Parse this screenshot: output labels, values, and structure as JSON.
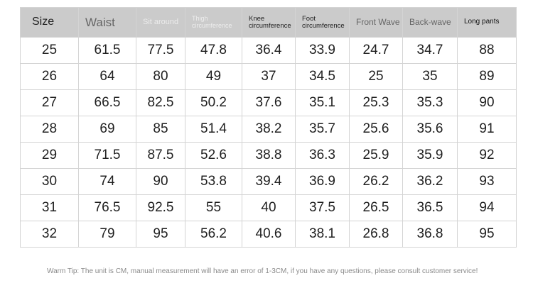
{
  "table": {
    "headers": [
      "Size",
      "Waist",
      "Sit around",
      "Thigh circumference",
      "Knee circumference",
      "Foot circumference",
      "Front Wave",
      "Back-wave",
      "Long pants"
    ],
    "rows": [
      [
        "25",
        "61.5",
        "77.5",
        "47.8",
        "36.4",
        "33.9",
        "24.7",
        "34.7",
        "88"
      ],
      [
        "26",
        "64",
        "80",
        "49",
        "37",
        "34.5",
        "25",
        "35",
        "89"
      ],
      [
        "27",
        "66.5",
        "82.5",
        "50.2",
        "37.6",
        "35.1",
        "25.3",
        "35.3",
        "90"
      ],
      [
        "28",
        "69",
        "85",
        "51.4",
        "38.2",
        "35.7",
        "25.6",
        "35.6",
        "91"
      ],
      [
        "29",
        "71.5",
        "87.5",
        "52.6",
        "38.8",
        "36.3",
        "25.9",
        "35.9",
        "92"
      ],
      [
        "30",
        "74",
        "90",
        "53.8",
        "39.4",
        "36.9",
        "26.2",
        "36.2",
        "93"
      ],
      [
        "31",
        "76.5",
        "92.5",
        "55",
        "40",
        "37.5",
        "26.5",
        "36.5",
        "94"
      ],
      [
        "32",
        "79",
        "95",
        "56.2",
        "40.6",
        "38.1",
        "26.8",
        "36.8",
        "95"
      ]
    ]
  },
  "tip": "Warm Tip: The unit is CM, manual measurement will have an error of 1-3CM, if you have any questions, please consult customer service!",
  "colors": {
    "header_bg": "#cbcbcb",
    "border": "#d4d4d4",
    "tip_text": "#8a8a8a"
  }
}
